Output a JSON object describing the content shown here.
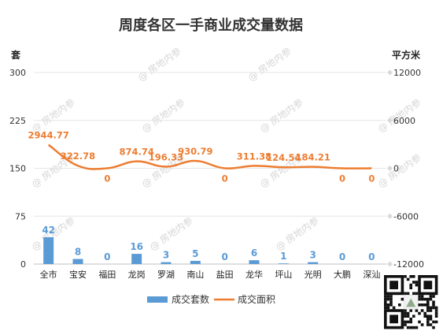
{
  "chart_data": {
    "type": "bar",
    "title": "周度各区一手商业成交量数据",
    "watermark": "@ 房地内参",
    "categories": [
      "全市",
      "宝安",
      "福田",
      "龙岗",
      "罗湖",
      "南山",
      "盐田",
      "龙华",
      "坪山",
      "光明",
      "大鹏",
      "深汕"
    ],
    "series": [
      {
        "name": "成交套数",
        "type": "bar",
        "axis": "left",
        "color": "#5b9bd5",
        "values": [
          42,
          8,
          0,
          16,
          3,
          5,
          0,
          6,
          1,
          3,
          0,
          0
        ],
        "labels": [
          "42",
          "8",
          "0",
          "16",
          "3",
          "5",
          "0",
          "6",
          "1",
          "3",
          "0",
          "0"
        ]
      },
      {
        "name": "成交面积",
        "type": "line",
        "axis": "right",
        "color": "#ed7d31",
        "values": [
          2944.77,
          322.78,
          0,
          874.74,
          196.33,
          930.79,
          0,
          311.38,
          124.54,
          184.21,
          0,
          0
        ],
        "labels": [
          "2944.77",
          "322.78",
          "0",
          "874.74",
          "196.33",
          "930.79",
          "0",
          "311.38",
          "124.54",
          "184.21",
          "0",
          "0"
        ]
      }
    ],
    "y_left": {
      "label": "套",
      "min": 0,
      "max": 300,
      "ticks": [
        0,
        75,
        150,
        225,
        300
      ]
    },
    "y_right": {
      "label": "平方米",
      "min": -12000,
      "max": 12000,
      "ticks": [
        -12000,
        -6000,
        0,
        6000,
        12000
      ]
    },
    "grid": true,
    "legend_position": "bottom"
  }
}
